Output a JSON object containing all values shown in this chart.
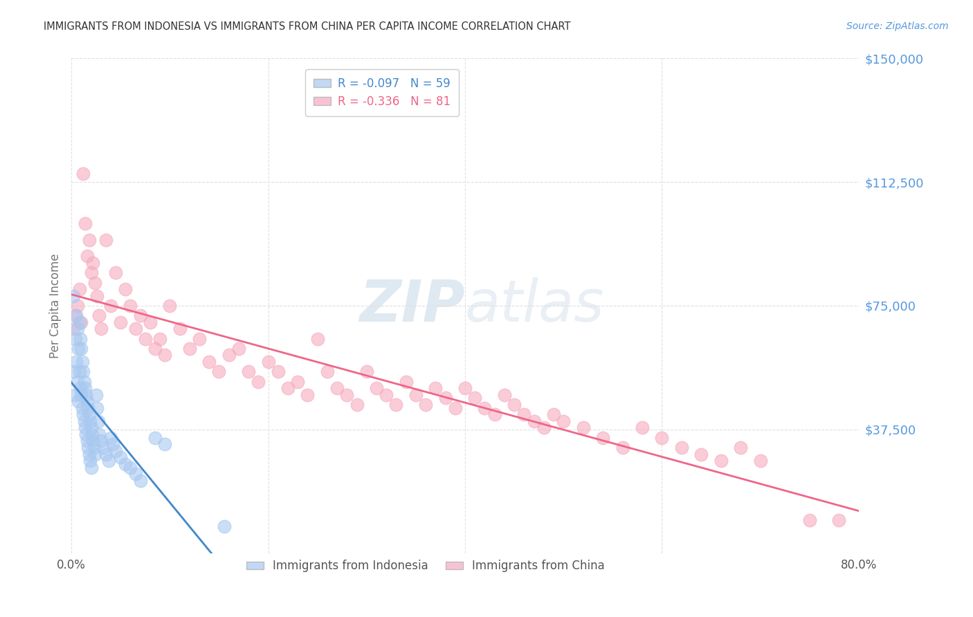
{
  "title": "IMMIGRANTS FROM INDONESIA VS IMMIGRANTS FROM CHINA PER CAPITA INCOME CORRELATION CHART",
  "source": "Source: ZipAtlas.com",
  "ylabel": "Per Capita Income",
  "xlim": [
    0.0,
    0.8
  ],
  "ylim": [
    0,
    150000
  ],
  "yticks": [
    0,
    37500,
    75000,
    112500,
    150000
  ],
  "ytick_labels": [
    "",
    "$37,500",
    "$75,000",
    "$112,500",
    "$150,000"
  ],
  "xticks": [
    0.0,
    0.2,
    0.4,
    0.6,
    0.8
  ],
  "xtick_labels": [
    "0.0%",
    "",
    "",
    "",
    "80.0%"
  ],
  "indonesia_color": "#a8c8f0",
  "china_color": "#f5aabf",
  "indonesia_trend_color": "#4488cc",
  "china_trend_color": "#ee6688",
  "dashed_line_color": "#aaccee",
  "background_color": "#ffffff",
  "title_color": "#333333",
  "axis_label_color": "#777777",
  "ytick_color": "#5599dd",
  "grid_color": "#e0e0e0",
  "watermark_color": "#d0e4f5",
  "indonesia_R": -0.097,
  "indonesia_N": 59,
  "china_R": -0.336,
  "china_N": 81,
  "figsize": [
    14.06,
    8.92
  ],
  "dpi": 100,
  "indonesia_x": [
    0.002,
    0.003,
    0.004,
    0.004,
    0.005,
    0.005,
    0.006,
    0.006,
    0.007,
    0.007,
    0.008,
    0.008,
    0.009,
    0.009,
    0.01,
    0.01,
    0.011,
    0.011,
    0.012,
    0.012,
    0.013,
    0.013,
    0.014,
    0.014,
    0.015,
    0.015,
    0.016,
    0.016,
    0.017,
    0.017,
    0.018,
    0.018,
    0.019,
    0.019,
    0.02,
    0.02,
    0.021,
    0.022,
    0.023,
    0.024,
    0.025,
    0.026,
    0.027,
    0.028,
    0.03,
    0.032,
    0.035,
    0.038,
    0.04,
    0.042,
    0.045,
    0.05,
    0.055,
    0.06,
    0.065,
    0.07,
    0.085,
    0.095,
    0.155
  ],
  "indonesia_y": [
    78000,
    55000,
    65000,
    48000,
    72000,
    58000,
    68000,
    52000,
    62000,
    46000,
    70000,
    55000,
    65000,
    50000,
    62000,
    48000,
    58000,
    44000,
    55000,
    42000,
    52000,
    40000,
    50000,
    38000,
    48000,
    36000,
    46000,
    34000,
    44000,
    32000,
    42000,
    30000,
    40000,
    28000,
    38000,
    26000,
    36000,
    34000,
    32000,
    30000,
    48000,
    44000,
    40000,
    36000,
    34000,
    32000,
    30000,
    28000,
    35000,
    33000,
    31000,
    29000,
    27000,
    26000,
    24000,
    22000,
    35000,
    33000,
    8000
  ],
  "china_x": [
    0.002,
    0.004,
    0.006,
    0.008,
    0.01,
    0.012,
    0.014,
    0.016,
    0.018,
    0.02,
    0.022,
    0.024,
    0.026,
    0.028,
    0.03,
    0.035,
    0.04,
    0.045,
    0.05,
    0.055,
    0.06,
    0.065,
    0.07,
    0.075,
    0.08,
    0.085,
    0.09,
    0.095,
    0.1,
    0.11,
    0.12,
    0.13,
    0.14,
    0.15,
    0.16,
    0.17,
    0.18,
    0.19,
    0.2,
    0.21,
    0.22,
    0.23,
    0.24,
    0.25,
    0.26,
    0.27,
    0.28,
    0.29,
    0.3,
    0.31,
    0.32,
    0.33,
    0.34,
    0.35,
    0.36,
    0.37,
    0.38,
    0.39,
    0.4,
    0.41,
    0.42,
    0.43,
    0.44,
    0.45,
    0.46,
    0.47,
    0.48,
    0.49,
    0.5,
    0.52,
    0.54,
    0.56,
    0.58,
    0.6,
    0.62,
    0.64,
    0.66,
    0.68,
    0.7,
    0.75,
    0.78
  ],
  "china_y": [
    68000,
    72000,
    75000,
    80000,
    70000,
    115000,
    100000,
    90000,
    95000,
    85000,
    88000,
    82000,
    78000,
    72000,
    68000,
    95000,
    75000,
    85000,
    70000,
    80000,
    75000,
    68000,
    72000,
    65000,
    70000,
    62000,
    65000,
    60000,
    75000,
    68000,
    62000,
    65000,
    58000,
    55000,
    60000,
    62000,
    55000,
    52000,
    58000,
    55000,
    50000,
    52000,
    48000,
    65000,
    55000,
    50000,
    48000,
    45000,
    55000,
    50000,
    48000,
    45000,
    52000,
    48000,
    45000,
    50000,
    47000,
    44000,
    50000,
    47000,
    44000,
    42000,
    48000,
    45000,
    42000,
    40000,
    38000,
    42000,
    40000,
    38000,
    35000,
    32000,
    38000,
    35000,
    32000,
    30000,
    28000,
    32000,
    28000,
    10000,
    10000
  ]
}
